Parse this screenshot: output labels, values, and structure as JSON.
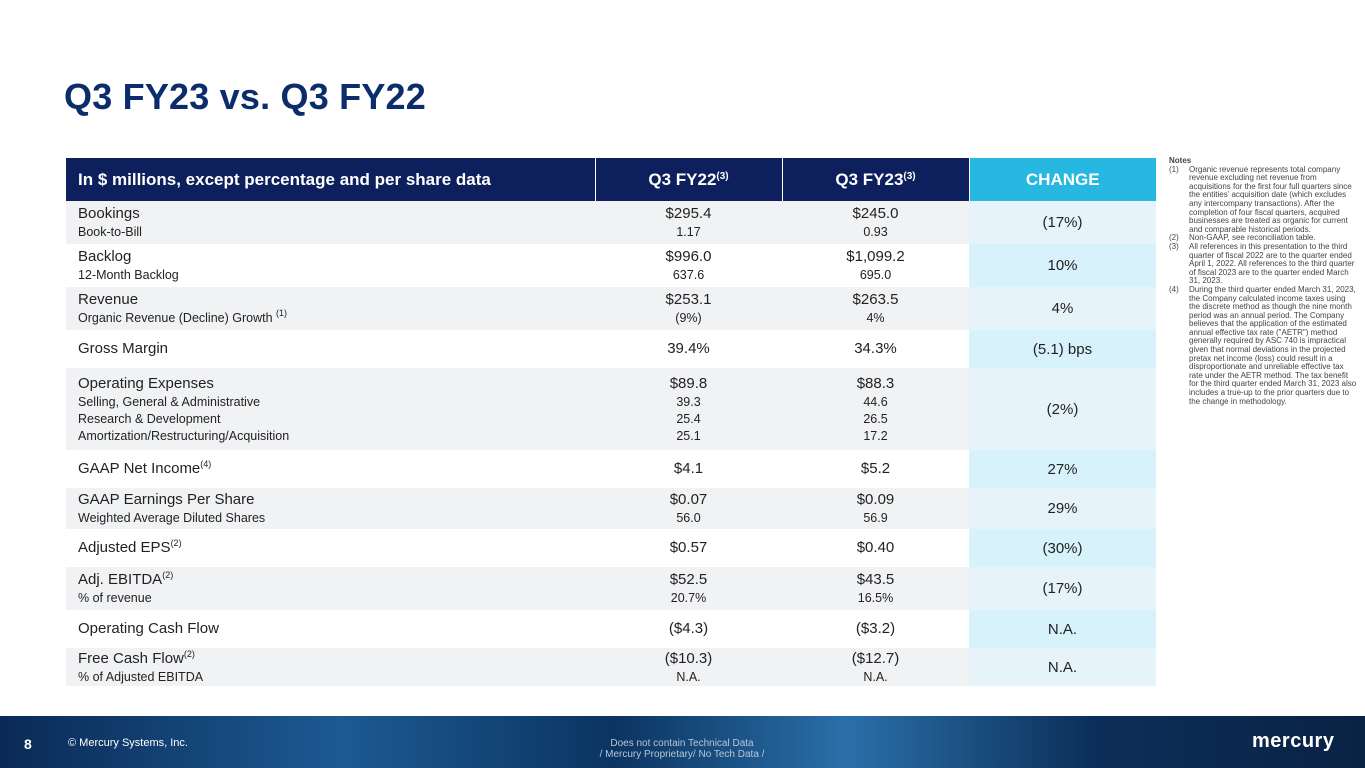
{
  "title": "Q3 FY23 vs. Q3 FY22",
  "table": {
    "header_label": "In $ millions, except percentage and per share data",
    "col_q3fy22": "Q3 FY22",
    "col_q3fy22_note": "(3)",
    "col_q3fy23": "Q3 FY23",
    "col_q3fy23_note": "(3)",
    "col_change": "CHANGE",
    "rows": [
      {
        "label": "Bookings",
        "sublabels": [
          "Book-to-Bill"
        ],
        "q3fy22": "$295.4",
        "q3fy22_sub": [
          "1.17"
        ],
        "q3fy23": "$245.0",
        "q3fy23_sub": [
          "0.93"
        ],
        "change": "(17%)"
      },
      {
        "label": "Backlog",
        "sublabels": [
          "12-Month Backlog"
        ],
        "q3fy22": "$996.0",
        "q3fy22_sub": [
          "637.6"
        ],
        "q3fy23": "$1,099.2",
        "q3fy23_sub": [
          "695.0"
        ],
        "change": "10%"
      },
      {
        "label": "Revenue",
        "sublabels": [
          "Organic Revenue (Decline) Growth"
        ],
        "sub_note": "(1)",
        "q3fy22": "$253.1",
        "q3fy22_sub": [
          "(9%)"
        ],
        "q3fy23": "$263.5",
        "q3fy23_sub": [
          "4%"
        ],
        "change": "4%"
      },
      {
        "label": "Gross Margin",
        "q3fy22": "39.4%",
        "q3fy23": "34.3%",
        "change": "(5.1) bps"
      },
      {
        "label": "Operating Expenses",
        "sublabels": [
          "Selling, General & Administrative",
          "Research & Development",
          "Amortization/Restructuring/Acquisition"
        ],
        "q3fy22": "$89.8",
        "q3fy22_sub": [
          "39.3",
          "25.4",
          "25.1"
        ],
        "q3fy23": "$88.3",
        "q3fy23_sub": [
          "44.6",
          "26.5",
          "17.2"
        ],
        "change": "(2%)"
      },
      {
        "label": "GAAP Net Income",
        "label_note": "(4)",
        "q3fy22": "$4.1",
        "q3fy23": "$5.2",
        "change": "27%"
      },
      {
        "label": "GAAP Earnings Per Share",
        "sublabels": [
          "Weighted Average Diluted Shares"
        ],
        "q3fy22": "$0.07",
        "q3fy22_sub": [
          "56.0"
        ],
        "q3fy23": "$0.09",
        "q3fy23_sub": [
          "56.9"
        ],
        "change": "29%"
      },
      {
        "label": "Adjusted EPS",
        "label_note": "(2)",
        "q3fy22": "$0.57",
        "q3fy23": "$0.40",
        "change": "(30%)"
      },
      {
        "label": "Adj. EBITDA",
        "label_note": "(2)",
        "sublabels": [
          "% of revenue"
        ],
        "q3fy22": "$52.5",
        "q3fy22_sub": [
          "20.7%"
        ],
        "q3fy23": "$43.5",
        "q3fy23_sub": [
          "16.5%"
        ],
        "change": "(17%)"
      },
      {
        "label": "Operating Cash Flow",
        "q3fy22": "($4.3)",
        "q3fy23": "($3.2)",
        "change": "N.A."
      },
      {
        "label": "Free Cash Flow",
        "label_note": "(2)",
        "sublabels": [
          "% of Adjusted EBITDA"
        ],
        "q3fy22": "($10.3)",
        "q3fy22_sub": [
          "N.A."
        ],
        "q3fy23": "($12.7)",
        "q3fy23_sub": [
          "N.A."
        ],
        "change": "N.A."
      }
    ]
  },
  "notes": {
    "title": "Notes",
    "items": [
      {
        "num": "(1)",
        "text": "Organic revenue represents total company revenue excluding net revenue from acquisitions for the first four full quarters since the entities' acquisition date (which excludes any intercompany transactions). After the completion of four fiscal quarters, acquired businesses are treated as organic for current and comparable historical periods."
      },
      {
        "num": "(2)",
        "text": "Non-GAAP, see reconciliation table."
      },
      {
        "num": "(3)",
        "text": "All references in this presentation to the third quarter of fiscal 2022 are to the quarter ended April 1, 2022. All references to the third quarter of fiscal 2023 are to the quarter ended March 31, 2023."
      },
      {
        "num": "(4)",
        "text": "During the third quarter ended March 31, 2023, the Company calculated income taxes using the discrete method as though the nine month period was an annual period. The Company believes that the application of the estimated annual effective tax rate (\"AETR\") method generally required by ASC 740 is impractical given that normal deviations in the projected pretax net income (loss) could result in a disproportionate and unreliable effective tax rate under the AETR method. The tax benefit for the third quarter ended March 31, 2023 also includes a true-up to the prior quarters due to the change in methodology."
      }
    ]
  },
  "footer": {
    "page_number": "8",
    "copyright": "© Mercury Systems, Inc.",
    "marking_line1": "Does not contain Technical Data",
    "marking_line2": "/ Mercury Proprietary/ No Tech Data /",
    "logo": "mercury"
  }
}
